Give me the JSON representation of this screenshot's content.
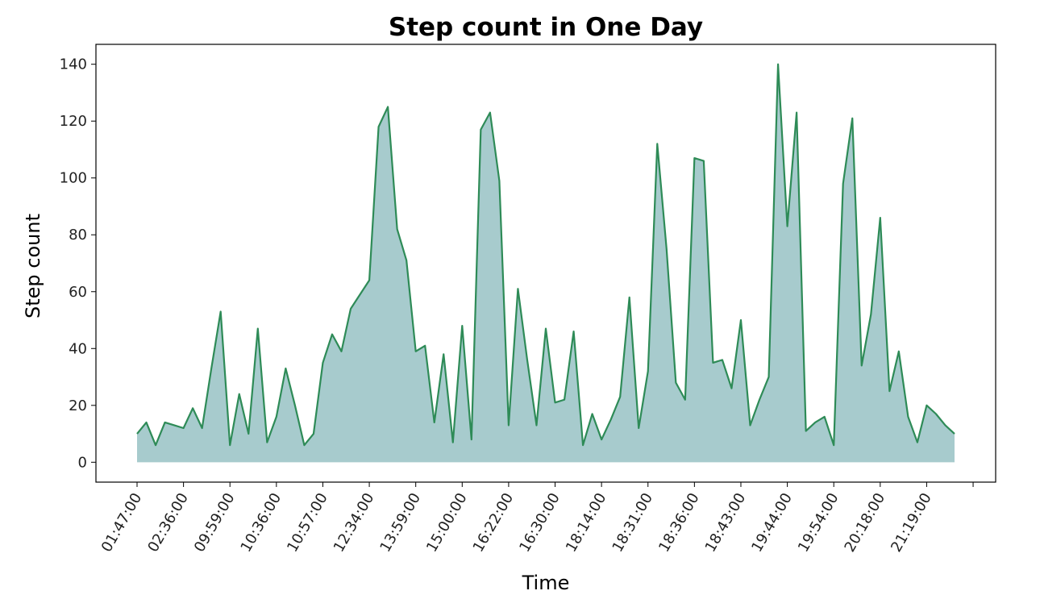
{
  "chart_data": {
    "type": "area",
    "title": "Step count in One Day",
    "xlabel": "Time",
    "ylabel": "Step count",
    "ylim": [
      -7,
      147
    ],
    "yticks": [
      0,
      20,
      40,
      60,
      80,
      100,
      120,
      140
    ],
    "xtick_labels": [
      "01:47:00",
      "02:36:00",
      "09:59:00",
      "10:36:00",
      "10:57:00",
      "12:34:00",
      "13:59:00",
      "15:00:00",
      "16:22:00",
      "16:30:00",
      "18:14:00",
      "18:31:00",
      "18:36:00",
      "18:43:00",
      "19:44:00",
      "19:54:00",
      "20:18:00",
      "21:19:00"
    ],
    "xtick_every": 5,
    "grid": false,
    "legend": "none",
    "line_color": "#2e8b57",
    "fill_color": "#a7cbcd",
    "series": [
      {
        "values": [
          10,
          14,
          6,
          14,
          13,
          12,
          19,
          12,
          33,
          53,
          6,
          24,
          10,
          47,
          7,
          16,
          33,
          20,
          6,
          10,
          35,
          45,
          39,
          54,
          59,
          64,
          118,
          125,
          82,
          71,
          39,
          41,
          14,
          38,
          7,
          48,
          8,
          117,
          123,
          99,
          13,
          61,
          36,
          13,
          47,
          21,
          22,
          46,
          6,
          17,
          8,
          15,
          23,
          58,
          12,
          32,
          112,
          75,
          28,
          22,
          107,
          106,
          35,
          36,
          26,
          50,
          13,
          22,
          30,
          140,
          83,
          123,
          11,
          14,
          16,
          6,
          98,
          121,
          34,
          52,
          86,
          25,
          39,
          16,
          7,
          20,
          17,
          13,
          10
        ]
      }
    ]
  }
}
